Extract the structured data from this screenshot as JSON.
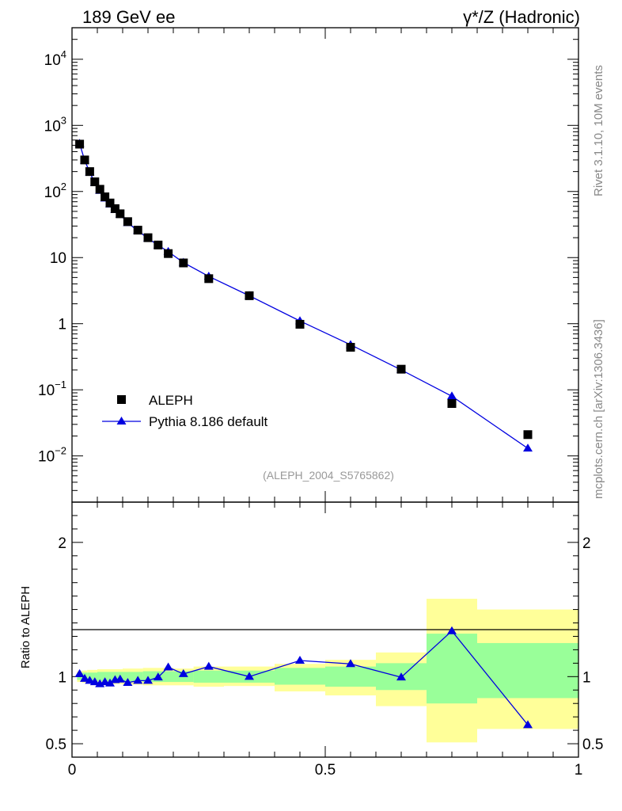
{
  "header": {
    "left_title": "189 GeV ee",
    "right_title": "γ*/Z (Hadronic)"
  },
  "side_labels": {
    "rivet": "Rivet 3.1.10,  10M events",
    "mcplots": "mcplots.cern.ch [arXiv:1306.3436]"
  },
  "colors": {
    "data_marker": "#000000",
    "mc_line": "#0000e0",
    "band_inner": "#99ff99",
    "band_outer": "#ffff99",
    "side_text": "#888888"
  },
  "chart_data": [
    {
      "type": "scatter",
      "panel": "main",
      "yscale": "log",
      "xlim": [
        0,
        1
      ],
      "ylim": [
        0.002,
        30000
      ],
      "y_tick_labels": [
        "10^-2",
        "10^-1",
        "1",
        "10",
        "10^2",
        "10^3",
        "10^4"
      ],
      "analysis_label": "(ALEPH_2004_S5765862)",
      "legend": {
        "position": "bottom-left"
      },
      "x": [
        0.015,
        0.025,
        0.035,
        0.045,
        0.055,
        0.065,
        0.075,
        0.085,
        0.095,
        0.11,
        0.13,
        0.15,
        0.17,
        0.19,
        0.22,
        0.27,
        0.35,
        0.45,
        0.55,
        0.65,
        0.75,
        0.9
      ],
      "series": [
        {
          "name": "ALEPH",
          "marker": "square",
          "values": [
            520,
            300,
            200,
            140,
            108,
            83,
            67,
            55,
            46,
            35,
            26,
            20,
            15.5,
            11.5,
            8.3,
            4.8,
            2.65,
            0.98,
            0.44,
            0.205,
            0.062,
            0.021
          ]
        },
        {
          "name": "Pythia 8.186 default",
          "marker": "triangle",
          "values": [
            530,
            295,
            195,
            135,
            103,
            79,
            64,
            53,
            45,
            33.5,
            25.5,
            19.5,
            15.4,
            12.3,
            8.4,
            5.2,
            2.65,
            1.1,
            0.48,
            0.2,
            0.08,
            0.013
          ]
        }
      ]
    },
    {
      "type": "line",
      "panel": "ratio",
      "ylabel": "Ratio to ALEPH",
      "xlim": [
        0,
        1
      ],
      "ylim": [
        0.4,
        2.3
      ],
      "x_tick_labels": [
        "0",
        "0.5",
        "1"
      ],
      "y_tick_labels": [
        "0.5",
        "1",
        "2"
      ],
      "reference_line": 1,
      "x": [
        0.015,
        0.025,
        0.035,
        0.045,
        0.055,
        0.065,
        0.075,
        0.085,
        0.095,
        0.11,
        0.13,
        0.15,
        0.17,
        0.19,
        0.22,
        0.27,
        0.35,
        0.45,
        0.55,
        0.65,
        0.75,
        0.9
      ],
      "series": [
        {
          "name": "Pythia 8.186 default",
          "values": [
            1.02,
            0.985,
            0.97,
            0.96,
            0.945,
            0.96,
            0.95,
            0.975,
            0.98,
            0.955,
            0.97,
            0.97,
            0.995,
            1.07,
            1.02,
            1.075,
            1.0,
            1.12,
            1.095,
            0.995,
            1.34,
            0.64
          ]
        }
      ],
      "uncertainty_bands": [
        {
          "x_range": [
            0.01,
            0.02
          ],
          "inner": [
            0.975,
            1.025
          ],
          "outer": [
            0.96,
            1.04
          ]
        },
        {
          "x_range": [
            0.02,
            0.03
          ],
          "inner": [
            0.97,
            1.03
          ],
          "outer": [
            0.955,
            1.045
          ]
        },
        {
          "x_range": [
            0.03,
            0.05
          ],
          "inner": [
            0.97,
            1.03
          ],
          "outer": [
            0.95,
            1.05
          ]
        },
        {
          "x_range": [
            0.05,
            0.1
          ],
          "inner": [
            0.965,
            1.035
          ],
          "outer": [
            0.945,
            1.055
          ]
        },
        {
          "x_range": [
            0.1,
            0.14
          ],
          "inner": [
            0.965,
            1.035
          ],
          "outer": [
            0.94,
            1.06
          ]
        },
        {
          "x_range": [
            0.14,
            0.2
          ],
          "inner": [
            0.96,
            1.04
          ],
          "outer": [
            0.935,
            1.065
          ]
        },
        {
          "x_range": [
            0.2,
            0.24
          ],
          "inner": [
            0.96,
            1.04
          ],
          "outer": [
            0.935,
            1.06
          ]
        },
        {
          "x_range": [
            0.24,
            0.3
          ],
          "inner": [
            0.955,
            1.045
          ],
          "outer": [
            0.925,
            1.075
          ]
        },
        {
          "x_range": [
            0.3,
            0.4
          ],
          "inner": [
            0.955,
            1.045
          ],
          "outer": [
            0.93,
            1.075
          ]
        },
        {
          "x_range": [
            0.4,
            0.5
          ],
          "inner": [
            0.94,
            1.065
          ],
          "outer": [
            0.89,
            1.095
          ]
        },
        {
          "x_range": [
            0.5,
            0.6
          ],
          "inner": [
            0.925,
            1.075
          ],
          "outer": [
            0.86,
            1.125
          ]
        },
        {
          "x_range": [
            0.6,
            0.7
          ],
          "inner": [
            0.9,
            1.1
          ],
          "outer": [
            0.78,
            1.18
          ]
        },
        {
          "x_range": [
            0.7,
            0.8
          ],
          "inner": [
            0.8,
            1.32
          ],
          "outer": [
            0.51,
            1.58
          ]
        },
        {
          "x_range": [
            0.8,
            1.0
          ],
          "inner": [
            0.84,
            1.25
          ],
          "outer": [
            0.61,
            1.5
          ]
        }
      ]
    }
  ]
}
